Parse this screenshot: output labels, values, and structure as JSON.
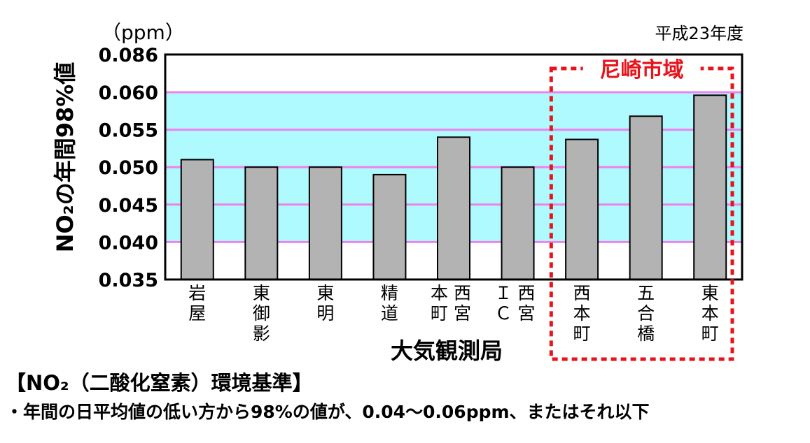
{
  "chart_data": {
    "type": "bar",
    "unit": "（ppm）",
    "fiscal_year": "平成23年度",
    "ylabel": "NO₂の年間98%値",
    "xlabel": "大気観測局",
    "ylim": [
      0.035,
      0.086
    ],
    "yticks": [
      "0.086",
      "0.060",
      "0.055",
      "0.050",
      "0.045",
      "0.040",
      "0.035"
    ],
    "ytick_values": [
      0.086,
      0.06,
      0.055,
      0.05,
      0.045,
      0.04,
      0.035
    ],
    "gridlines": [
      0.06,
      0.055,
      0.05,
      0.045,
      0.04
    ],
    "standard_band": [
      0.04,
      0.06
    ],
    "categories": [
      [
        "岩",
        "屋"
      ],
      [
        "東",
        "御",
        "影"
      ],
      [
        "東",
        "明"
      ],
      [
        "精",
        "道"
      ],
      [
        "本西",
        "町宮"
      ],
      [
        "Ｉ西",
        "Ｃ宮"
      ],
      [
        "西",
        "本",
        "町"
      ],
      [
        "五",
        "合",
        "橋"
      ],
      [
        "東",
        "本",
        "町"
      ]
    ],
    "values": [
      0.051,
      0.05,
      0.05,
      0.049,
      0.054,
      0.05,
      0.0537,
      0.0568,
      0.0596
    ],
    "highlight": {
      "label": "尼崎市域",
      "from_index": 6,
      "to_index": 8
    },
    "colors": {
      "bar": "#b3b3b3",
      "band": "#aefaff",
      "grid": "#ee82ee",
      "highlight": "#e8141c"
    }
  },
  "notes": {
    "title": "【NO₂（二酸化窒素）環境基準】",
    "line": "・年間の日平均値の低い方から98%の値が、0.04～0.06ppm、またはそれ以下"
  }
}
